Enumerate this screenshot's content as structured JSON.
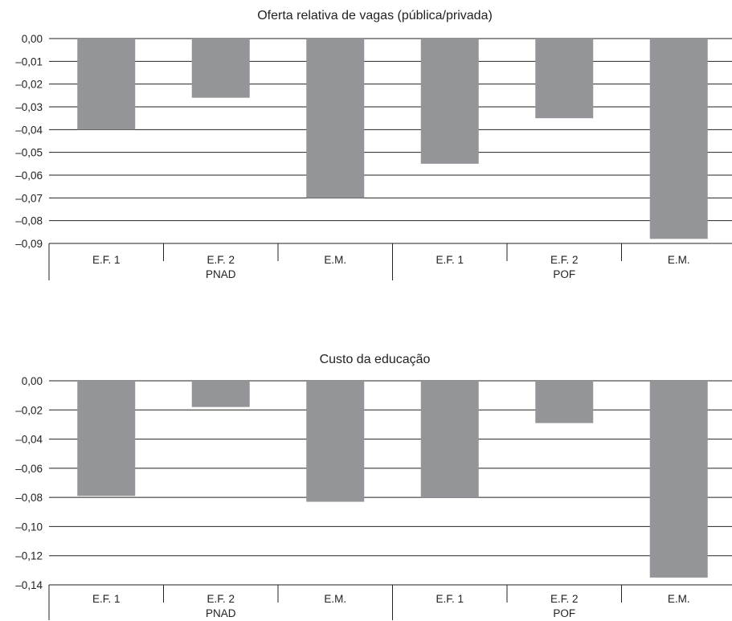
{
  "chart_data": [
    {
      "type": "bar",
      "title": "Oferta relativa de vagas (pública/privada)",
      "categories": [
        "E.F. 1",
        "E.F. 2",
        "E.M.",
        "E.F. 1",
        "E.F. 2",
        "E.M."
      ],
      "groups": [
        {
          "label": "PNAD",
          "categories": [
            "E.F. 1",
            "E.F. 2",
            "E.M."
          ]
        },
        {
          "label": "POF",
          "categories": [
            "E.F. 1",
            "E.F. 2",
            "E.M."
          ]
        }
      ],
      "values": [
        -0.04,
        -0.026,
        -0.07,
        -0.055,
        -0.035,
        -0.088
      ],
      "yticks": [
        "0,00",
        "–0,01",
        "–0,02",
        "–0,03",
        "–0,04",
        "–0,05",
        "–0,06",
        "–0,07",
        "–0,08",
        "–0,09"
      ],
      "ylim": [
        -0.09,
        0
      ],
      "grid": true,
      "bar_color": "#939598"
    },
    {
      "type": "bar",
      "title": "Custo da educação",
      "categories": [
        "E.F. 1",
        "E.F. 2",
        "E.M.",
        "E.F. 1",
        "E.F. 2",
        "E.M."
      ],
      "groups": [
        {
          "label": "PNAD",
          "categories": [
            "E.F. 1",
            "E.F. 2",
            "E.M."
          ]
        },
        {
          "label": "POF",
          "categories": [
            "E.F. 1",
            "E.F. 2",
            "E.M."
          ]
        }
      ],
      "values": [
        -0.079,
        -0.018,
        -0.083,
        -0.08,
        -0.029,
        -0.135
      ],
      "yticks": [
        "0,00",
        "–0,02",
        "–0,04",
        "–0,06",
        "–0,08",
        "–0,10",
        "–0,12",
        "–0,14"
      ],
      "ylim": [
        -0.14,
        0
      ],
      "grid": true,
      "bar_color": "#939598"
    }
  ]
}
